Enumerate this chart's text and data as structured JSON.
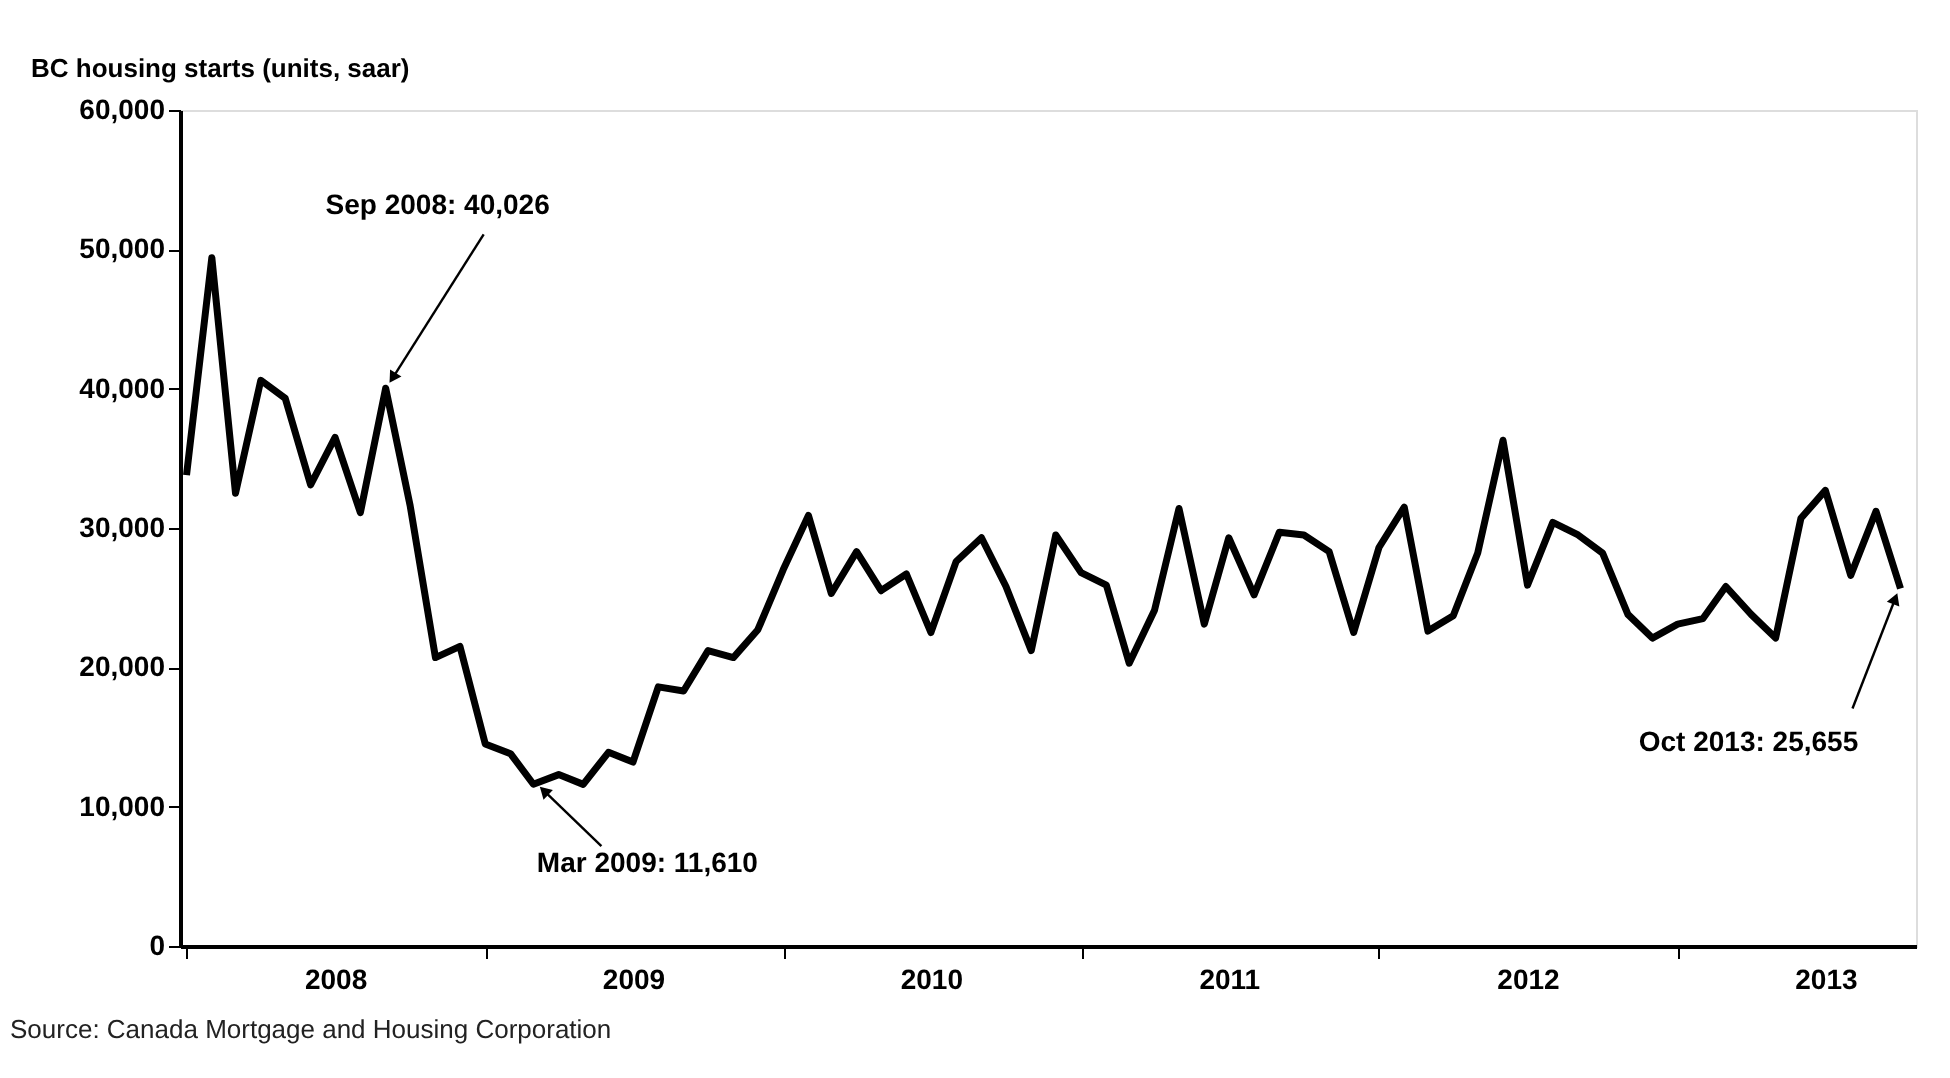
{
  "chart_data": {
    "type": "line",
    "ylabel": "BC housing starts (units, saar)",
    "x": [
      "2008-01",
      "2008-02",
      "2008-03",
      "2008-04",
      "2008-05",
      "2008-06",
      "2008-07",
      "2008-08",
      "2008-09",
      "2008-10",
      "2008-11",
      "2008-12",
      "2009-01",
      "2009-02",
      "2009-03",
      "2009-04",
      "2009-05",
      "2009-06",
      "2009-07",
      "2009-08",
      "2009-09",
      "2009-10",
      "2009-11",
      "2009-12",
      "2010-01",
      "2010-02",
      "2010-03",
      "2010-04",
      "2010-05",
      "2010-06",
      "2010-07",
      "2010-08",
      "2010-09",
      "2010-10",
      "2010-11",
      "2010-12",
      "2011-01",
      "2011-02",
      "2011-03",
      "2011-04",
      "2011-05",
      "2011-06",
      "2011-07",
      "2011-08",
      "2011-09",
      "2011-10",
      "2011-11",
      "2011-12",
      "2012-01",
      "2012-02",
      "2012-03",
      "2012-04",
      "2012-05",
      "2012-06",
      "2012-07",
      "2012-08",
      "2012-09",
      "2012-10",
      "2012-11",
      "2012-12",
      "2013-01",
      "2013-02",
      "2013-03",
      "2013-04",
      "2013-05",
      "2013-06",
      "2013-07",
      "2013-08",
      "2013-09",
      "2013-10"
    ],
    "series": [
      {
        "color": "#000000",
        "values": [
          33800,
          49400,
          32500,
          40600,
          39300,
          33100,
          36500,
          31100,
          40026,
          31600,
          20700,
          21500,
          14500,
          13800,
          11610,
          12300,
          11600,
          13900,
          13200,
          18600,
          18300,
          21200,
          20700,
          22700,
          27000,
          30900,
          25300,
          28300,
          25500,
          26700,
          22500,
          27600,
          29300,
          25800,
          21200,
          29500,
          26800,
          25900,
          20300,
          24100,
          31400,
          23100,
          29300,
          25200,
          29700,
          29500,
          28300,
          22500,
          28600,
          31500,
          22600,
          23700,
          28200,
          36300,
          25900,
          30400,
          29500,
          28200,
          23800,
          22100,
          23100,
          23500,
          25800,
          23800,
          22100,
          30700,
          32700,
          26600,
          31200,
          25655
        ]
      }
    ],
    "ylim": [
      0,
      60000
    ],
    "yticks": [
      0,
      {
        "value": 10000,
        "label": "10,000"
      },
      {
        "value": 20000,
        "label": "20,000"
      },
      {
        "value": 30000,
        "label": "30,000"
      },
      {
        "value": 40000,
        "label": "40,000"
      },
      {
        "value": 50000,
        "label": "50,000"
      },
      {
        "value": 60000,
        "label": "60,000"
      }
    ],
    "xlim": [
      "2007-12-24",
      "2013-10-20"
    ],
    "xticks": [
      {
        "value": "2008-01-01",
        "label": null
      },
      {
        "value": "2008-07-01",
        "label": "2008"
      },
      {
        "value": "2009-01-01",
        "label": null
      },
      {
        "value": "2009-07-01",
        "label": "2009"
      },
      {
        "value": "2010-01-01",
        "label": null
      },
      {
        "value": "2010-07-01",
        "label": "2010"
      },
      {
        "value": "2011-01-01",
        "label": null
      },
      {
        "value": "2011-07-01",
        "label": "2011"
      },
      {
        "value": "2012-01-01",
        "label": null
      },
      {
        "value": "2012-07-01",
        "label": "2012"
      },
      {
        "value": "2013-01-01",
        "label": null
      },
      {
        "value": "2013-07-01",
        "label": "2013"
      }
    ],
    "grid": false,
    "marker": "none",
    "line_style": "solid",
    "annotations": [
      {
        "text": "Sep 2008: 40,026",
        "x": "2008-09",
        "y": 40026
      },
      {
        "text": "Mar 2009: 11,610",
        "x": "2009-03",
        "y": 11610
      },
      {
        "text": "Oct 2013: 25,655",
        "x": "2013-10",
        "y": 25655
      },
      "Source: Canada Mortgage and Housing Corporation"
    ]
  }
}
